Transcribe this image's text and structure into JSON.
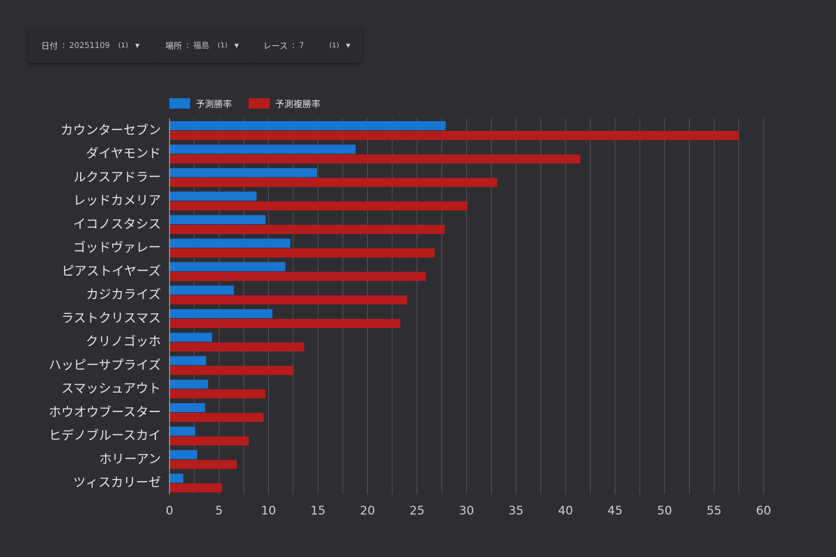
{
  "filters": [
    {
      "label": "日付",
      "value": "20251109",
      "count": "(1)"
    },
    {
      "label": "場所",
      "value": "福島",
      "count": "(1)"
    },
    {
      "label": "レース",
      "value": "7",
      "count": "(1)"
    }
  ],
  "colors": {
    "win": "#1976d2",
    "place": "#b71c1c",
    "background": "#2e2d32"
  },
  "chart_data": {
    "type": "bar",
    "orientation": "horizontal",
    "legend_position": "top-left",
    "grid": true,
    "xlim": [
      0,
      60
    ],
    "xticks": [
      0,
      5,
      10,
      15,
      20,
      25,
      30,
      35,
      40,
      45,
      50,
      55,
      60
    ],
    "categories": [
      "カウンターセブン",
      "ダイヤモンド",
      "ルクスアドラー",
      "レッドカメリア",
      "イコノスタシス",
      "ゴッドヴァレー",
      "ピアストイヤーズ",
      "カジカライズ",
      "ラストクリスマス",
      "クリノゴッホ",
      "ハッピーサプライズ",
      "スマッシュアウト",
      "ホウオウブースター",
      "ヒデノブルースカイ",
      "ホリーアン",
      "ツィスカリーゼ"
    ],
    "series": [
      {
        "name": "予測勝率",
        "color": "#1976d2",
        "values": [
          27.9,
          18.8,
          14.9,
          8.8,
          9.7,
          12.2,
          11.7,
          6.5,
          10.4,
          4.3,
          3.7,
          3.9,
          3.6,
          2.6,
          2.8,
          1.4
        ]
      },
      {
        "name": "予測複勝率",
        "color": "#b71c1c",
        "values": [
          57.5,
          41.5,
          33.1,
          30.1,
          27.8,
          26.8,
          25.9,
          24.0,
          23.3,
          13.6,
          12.5,
          9.7,
          9.5,
          8.0,
          6.8,
          5.3
        ]
      }
    ]
  }
}
